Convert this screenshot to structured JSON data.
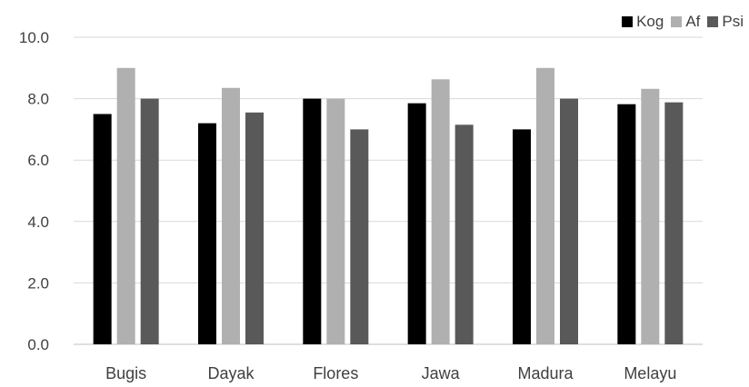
{
  "chart_data": {
    "type": "bar",
    "title": "",
    "xlabel": "",
    "ylabel": "",
    "categories": [
      "Bugis",
      "Dayak",
      "Flores",
      "Jawa",
      "Madura",
      "Melayu"
    ],
    "series": [
      {
        "name": "Kog",
        "color": "#000000",
        "values": [
          7.5,
          7.2,
          8.0,
          7.85,
          7.0,
          7.82
        ]
      },
      {
        "name": "Af",
        "color": "#b0b0b0",
        "values": [
          9.0,
          8.35,
          8.0,
          8.63,
          9.0,
          8.32
        ]
      },
      {
        "name": "Psi",
        "color": "#595959",
        "values": [
          8.0,
          7.55,
          7.0,
          7.15,
          8.0,
          7.88
        ]
      }
    ],
    "ylim": [
      0,
      10
    ],
    "yticks": [
      "0.0",
      "2.0",
      "4.0",
      "6.0",
      "8.0",
      "10.0"
    ],
    "grid": true,
    "legend_position": "top-right"
  }
}
